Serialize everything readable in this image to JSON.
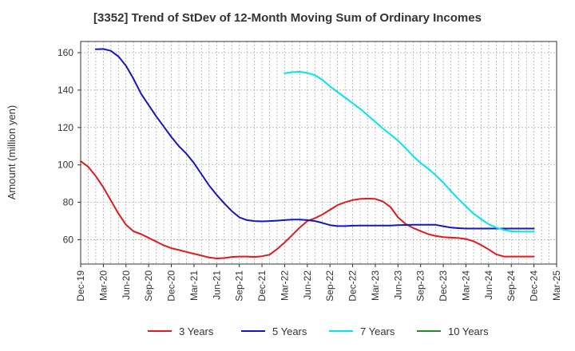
{
  "chart_data": {
    "type": "line",
    "title": "[3352]  Trend of StDev of 12-Month Moving Sum of Ordinary Incomes",
    "xlabel": "",
    "ylabel": "Amount (million yen)",
    "x_ticks": [
      "Dec-19",
      "Mar-20",
      "Jun-20",
      "Sep-20",
      "Dec-20",
      "Mar-21",
      "Jun-21",
      "Sep-21",
      "Dec-21",
      "Mar-22",
      "Jun-22",
      "Sep-22",
      "Dec-22",
      "Mar-23",
      "Jun-23",
      "Sep-23",
      "Dec-23",
      "Mar-24",
      "Jun-24",
      "Sep-24",
      "Dec-24",
      "Mar-25"
    ],
    "y_ticks": [
      60,
      80,
      100,
      120,
      140,
      160
    ],
    "ylim": [
      47,
      166
    ],
    "grid": true,
    "legend_position": "bottom",
    "series": [
      {
        "name": "3 Years",
        "color": "#e31a1c",
        "x": [
          "Dec-19",
          "Jan-20",
          "Feb-20",
          "Mar-20",
          "Apr-20",
          "May-20",
          "Jun-20",
          "Jul-20",
          "Aug-20",
          "Sep-20",
          "Oct-20",
          "Nov-20",
          "Dec-20",
          "Jan-21",
          "Feb-21",
          "Mar-21",
          "Apr-21",
          "May-21",
          "Jun-21",
          "Jul-21",
          "Aug-21",
          "Sep-21",
          "Oct-21",
          "Nov-21",
          "Dec-21",
          "Jan-22",
          "Feb-22",
          "Mar-22",
          "Apr-22",
          "May-22",
          "Jun-22",
          "Jul-22",
          "Aug-22",
          "Sep-22",
          "Oct-22",
          "Nov-22",
          "Dec-22",
          "Jan-23",
          "Feb-23",
          "Mar-23",
          "Apr-23",
          "May-23",
          "Jun-23",
          "Jul-23",
          "Aug-23",
          "Sep-23",
          "Oct-23",
          "Nov-23",
          "Dec-23",
          "Jan-24",
          "Feb-24",
          "Mar-24",
          "Apr-24",
          "May-24",
          "Jun-24",
          "Jul-24",
          "Aug-24",
          "Sep-24",
          "Oct-24",
          "Nov-24",
          "Dec-24"
        ],
        "values": [
          102,
          99,
          94,
          88,
          81,
          74,
          68,
          64.5,
          63,
          61,
          59,
          57,
          55.5,
          54.5,
          53.5,
          52.5,
          51.5,
          50.5,
          50,
          50.2,
          50.8,
          51,
          51,
          50.8,
          51.2,
          52,
          55,
          58.5,
          62.5,
          66.5,
          70,
          71.5,
          73.5,
          76,
          78.5,
          80,
          81.2,
          81.8,
          82,
          81.8,
          80.5,
          77.5,
          72,
          68.5,
          66.3,
          64.6,
          63,
          62,
          61.4,
          61.1,
          60.9,
          60.4,
          59.2,
          57.2,
          54.8,
          52.2,
          51,
          51,
          51,
          51,
          51
        ]
      },
      {
        "name": "5 Years",
        "color": "#1515c8",
        "x": [
          "Feb-20",
          "Mar-20",
          "Apr-20",
          "May-20",
          "Jun-20",
          "Jul-20",
          "Aug-20",
          "Sep-20",
          "Oct-20",
          "Nov-20",
          "Dec-20",
          "Jan-21",
          "Feb-21",
          "Mar-21",
          "Apr-21",
          "May-21",
          "Jun-21",
          "Jul-21",
          "Aug-21",
          "Sep-21",
          "Oct-21",
          "Nov-21",
          "Dec-21",
          "Jan-22",
          "Feb-22",
          "Mar-22",
          "Apr-22",
          "May-22",
          "Jun-22",
          "Jul-22",
          "Aug-22",
          "Sep-22",
          "Oct-22",
          "Nov-22",
          "Dec-22",
          "Jan-23",
          "Feb-23",
          "Mar-23",
          "Apr-23",
          "May-23",
          "Jun-23",
          "Jul-23",
          "Aug-23",
          "Sep-23",
          "Oct-23",
          "Nov-23",
          "Dec-23",
          "Jan-24",
          "Feb-24",
          "Mar-24",
          "Apr-24",
          "May-24",
          "Jun-24",
          "Jul-24",
          "Aug-24",
          "Sep-24",
          "Oct-24",
          "Nov-24",
          "Dec-24"
        ],
        "values": [
          161.8,
          162,
          161,
          158,
          153,
          146,
          138,
          132,
          126,
          120.5,
          115,
          110,
          106,
          101,
          95,
          89,
          84,
          79.5,
          75.3,
          72,
          70.5,
          70,
          69.8,
          70,
          70.2,
          70.5,
          70.8,
          70.8,
          70.5,
          70,
          69,
          67.8,
          67.3,
          67.3,
          67.5,
          67.6,
          67.6,
          67.6,
          67.6,
          67.6,
          67.8,
          67.9,
          68,
          68,
          68,
          68,
          67.2,
          66.5,
          66.2,
          66,
          66,
          66,
          66,
          66,
          66,
          66,
          66,
          66,
          66
        ]
      },
      {
        "name": "7 Years",
        "color": "#00e5ee",
        "x": [
          "Mar-22",
          "Apr-22",
          "May-22",
          "Jun-22",
          "Jul-22",
          "Aug-22",
          "Sep-22",
          "Oct-22",
          "Nov-22",
          "Dec-22",
          "Jan-23",
          "Feb-23",
          "Mar-23",
          "Apr-23",
          "May-23",
          "Jun-23",
          "Jul-23",
          "Aug-23",
          "Sep-23",
          "Oct-23",
          "Nov-23",
          "Dec-23",
          "Jan-24",
          "Feb-24",
          "Mar-24",
          "Apr-24",
          "May-24",
          "Jun-24",
          "Jul-24",
          "Aug-24",
          "Sep-24",
          "Oct-24",
          "Nov-24",
          "Dec-24"
        ],
        "values": [
          149,
          149.6,
          149.8,
          149.2,
          148,
          145.5,
          142,
          139,
          136,
          133,
          130,
          126.5,
          123,
          119.5,
          116.3,
          113,
          109,
          104.7,
          101,
          98,
          94.5,
          90.5,
          86,
          81.8,
          77.8,
          74,
          71,
          68.3,
          66.5,
          65.3,
          64.5,
          64.3,
          64.3,
          64.3
        ]
      },
      {
        "name": "10 Years",
        "color": "#228b22",
        "x": [],
        "values": []
      }
    ]
  }
}
